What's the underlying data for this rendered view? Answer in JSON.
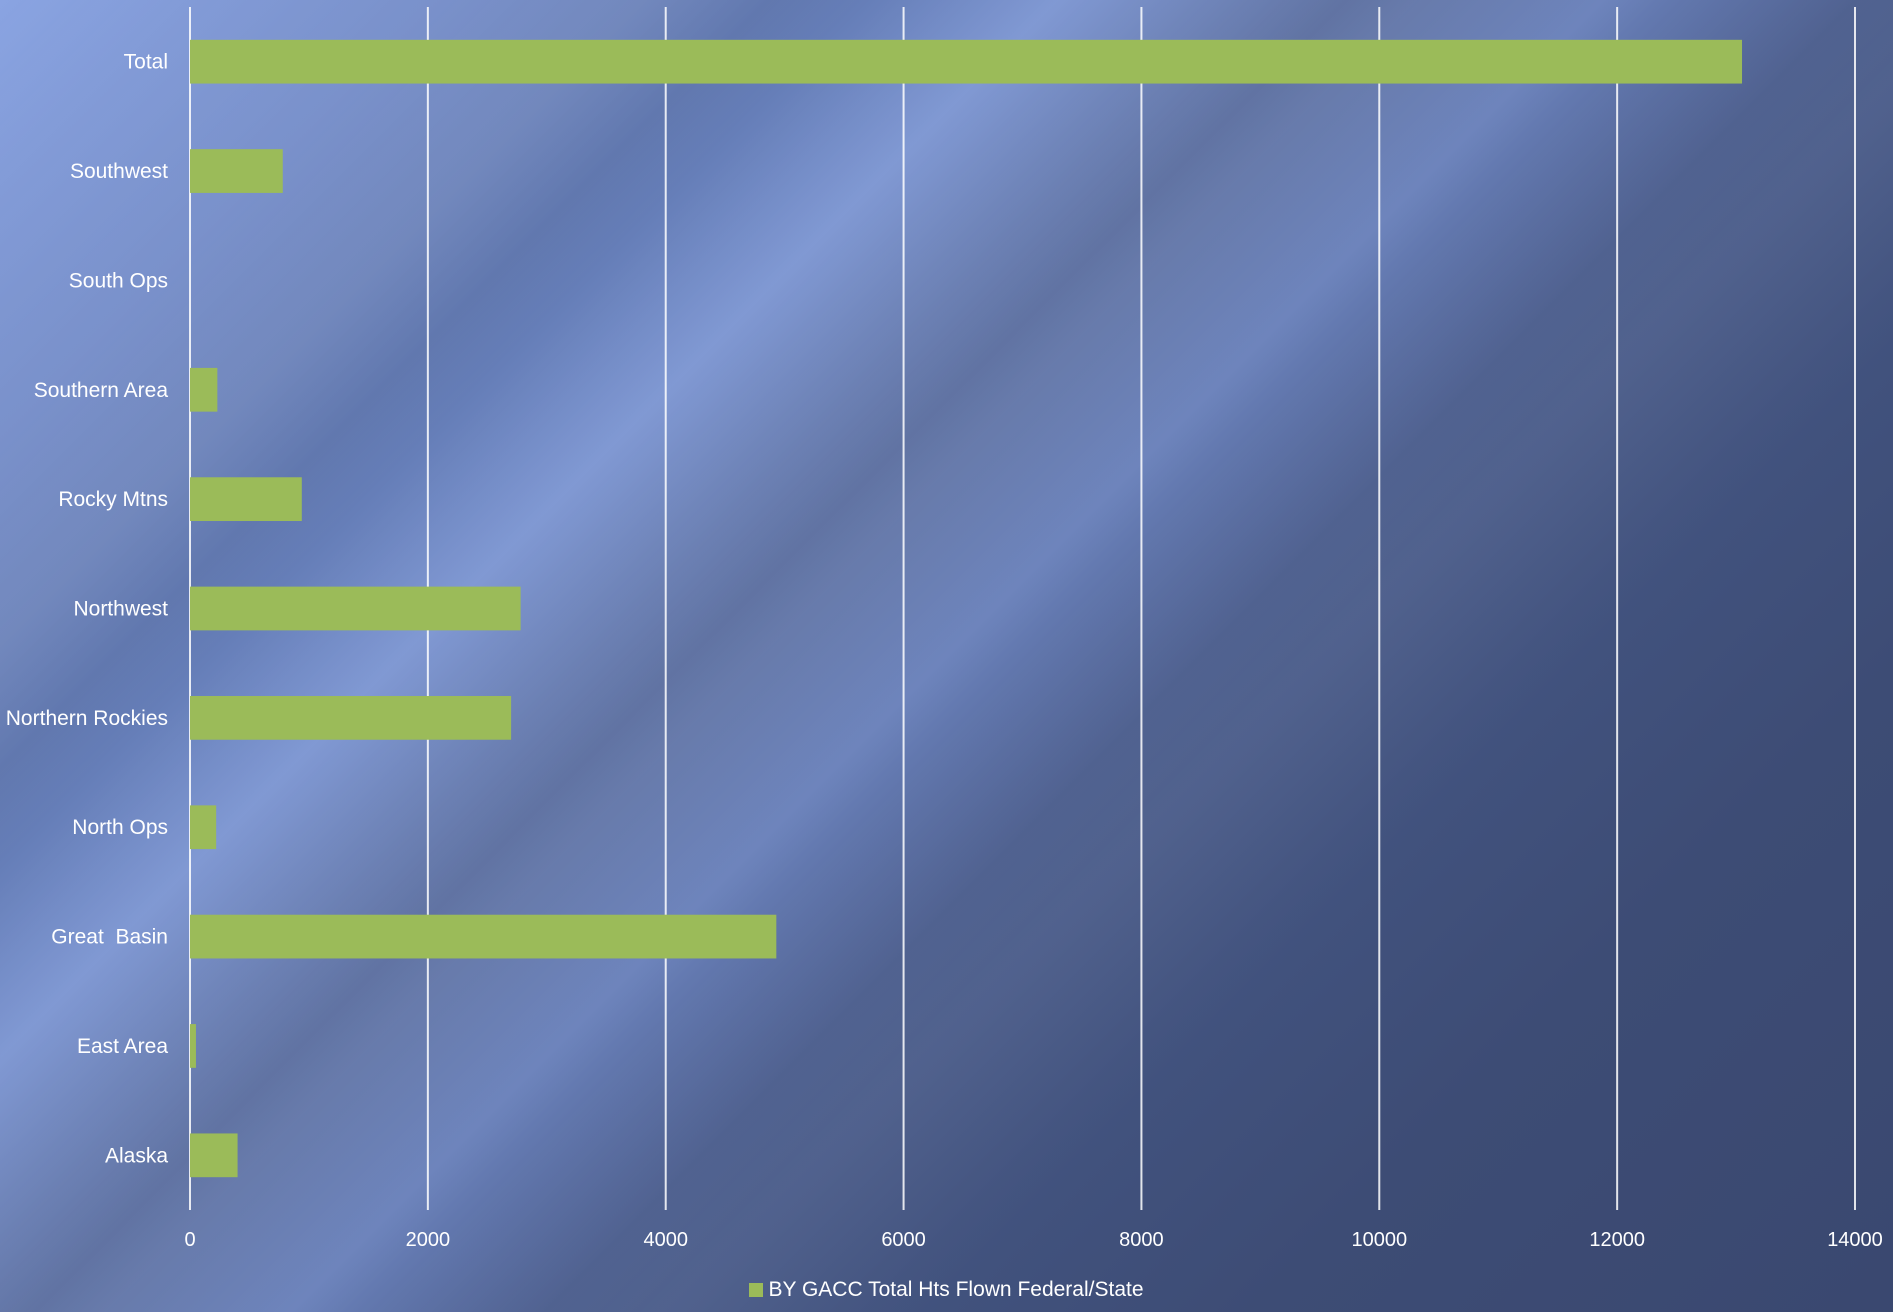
{
  "chart_data": {
    "type": "bar",
    "orientation": "horizontal",
    "categories": [
      "Alaska",
      "East Area",
      "Great  Basin",
      "North Ops",
      "Northern Rockies",
      "Northwest",
      "Rocky Mtns",
      "Southern Area",
      "South Ops",
      "Southwest",
      "Total"
    ],
    "series": [
      {
        "name": "BY GACC Total Hts Flown Federal/State",
        "values": [
          400,
          50,
          4930,
          220,
          2700,
          2780,
          940,
          230,
          0,
          780,
          13050
        ]
      }
    ],
    "xlim": [
      0,
      14000
    ],
    "xticks": [
      0,
      2000,
      4000,
      6000,
      8000,
      10000,
      12000,
      14000
    ],
    "grid": "vertical",
    "legend_position": "bottom",
    "bar_color": "#9bbb59",
    "title": "",
    "xlabel": "",
    "ylabel": ""
  }
}
